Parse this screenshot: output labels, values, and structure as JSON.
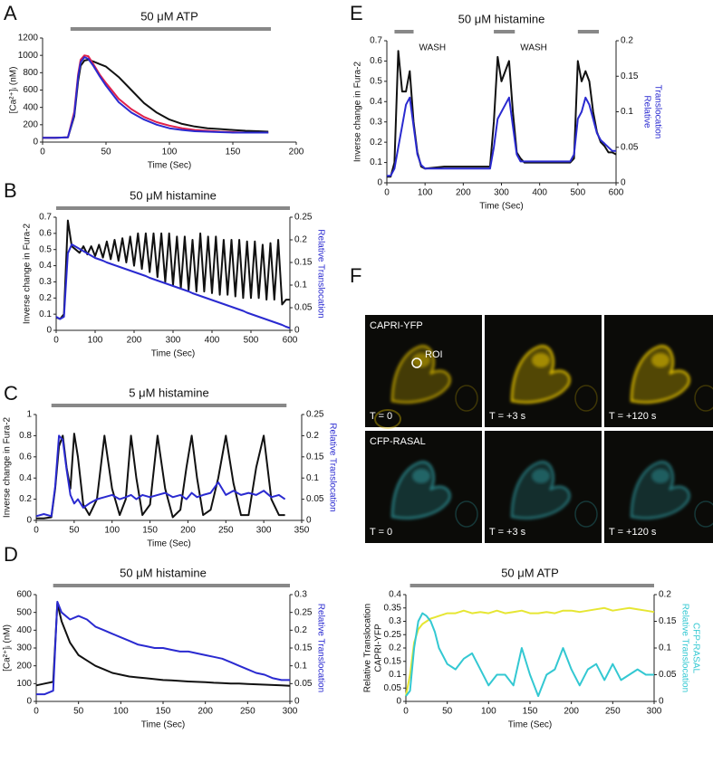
{
  "chart_data": [
    {
      "label": "A",
      "type": "line",
      "title": "50 μM ATP",
      "stimulus": {
        "spans": [
          [
            22,
            180
          ]
        ]
      },
      "xlabel": "Time (Sec)",
      "ylabel": [
        "[Ca²⁺]ᵢ (nM)"
      ],
      "x": [
        0,
        10,
        20,
        25,
        28,
        30,
        33,
        36,
        40,
        45,
        50,
        60,
        70,
        80,
        90,
        100,
        110,
        120,
        130,
        140,
        150,
        160,
        170,
        178
      ],
      "series": [
        {
          "color": "#111111",
          "axis": "y",
          "values": [
            50,
            50,
            55,
            300,
            700,
            880,
            940,
            950,
            930,
            900,
            870,
            750,
            600,
            450,
            340,
            260,
            210,
            180,
            160,
            150,
            140,
            130,
            125,
            120
          ]
        },
        {
          "color": "#e0204a",
          "axis": "y",
          "values": [
            50,
            50,
            55,
            350,
            780,
            950,
            1000,
            990,
            900,
            780,
            680,
            500,
            380,
            290,
            230,
            190,
            160,
            140,
            130,
            120,
            115,
            110,
            110,
            110
          ]
        },
        {
          "color": "#2a2ad0",
          "axis": "y",
          "values": [
            50,
            50,
            55,
            320,
            750,
            920,
            980,
            960,
            880,
            760,
            650,
            460,
            340,
            260,
            200,
            160,
            140,
            125,
            120,
            115,
            110,
            110,
            110,
            110
          ]
        }
      ],
      "xlim": [
        0,
        200
      ],
      "xticks": [
        0,
        50,
        100,
        150,
        200
      ],
      "ylim": [
        0,
        1200
      ],
      "yticks": [
        0,
        200,
        400,
        600,
        800,
        1000,
        1200
      ]
    },
    {
      "label": "B",
      "type": "line",
      "title": "50 μM histamine",
      "stimulus": {
        "spans": [
          [
            0,
            600
          ]
        ]
      },
      "xlabel": "Time (Sec)",
      "ylabel": [
        "Inverse change in Fura-2"
      ],
      "y2label": [
        "Relative Translocation"
      ],
      "x": [
        0,
        10,
        20,
        30,
        40,
        50,
        60,
        70,
        80,
        90,
        100,
        110,
        120,
        130,
        140,
        150,
        160,
        170,
        180,
        190,
        200,
        210,
        220,
        230,
        240,
        250,
        260,
        270,
        280,
        290,
        300,
        310,
        320,
        330,
        340,
        350,
        360,
        370,
        380,
        390,
        400,
        410,
        420,
        430,
        440,
        450,
        460,
        470,
        480,
        490,
        500,
        510,
        520,
        530,
        540,
        550,
        560,
        570,
        580,
        590,
        600
      ],
      "series": [
        {
          "color": "#111111",
          "axis": "y",
          "values": [
            0.08,
            0.07,
            0.1,
            0.68,
            0.52,
            0.5,
            0.48,
            0.52,
            0.47,
            0.52,
            0.46,
            0.53,
            0.45,
            0.55,
            0.44,
            0.56,
            0.43,
            0.57,
            0.42,
            0.58,
            0.4,
            0.6,
            0.38,
            0.6,
            0.36,
            0.6,
            0.33,
            0.6,
            0.3,
            0.6,
            0.28,
            0.58,
            0.26,
            0.58,
            0.25,
            0.56,
            0.24,
            0.6,
            0.24,
            0.58,
            0.23,
            0.58,
            0.22,
            0.56,
            0.22,
            0.56,
            0.21,
            0.56,
            0.2,
            0.55,
            0.2,
            0.55,
            0.2,
            0.53,
            0.19,
            0.54,
            0.19,
            0.56,
            0.16,
            0.19,
            0.19
          ]
        },
        {
          "color": "#2a2ad0",
          "axis": "y2",
          "values": [
            0.03,
            0.025,
            0.03,
            0.17,
            0.19,
            0.185,
            0.18,
            0.175,
            0.17,
            0.165,
            0.16,
            0.157,
            0.154,
            0.15,
            0.147,
            0.144,
            0.141,
            0.138,
            0.135,
            0.132,
            0.129,
            0.126,
            0.123,
            0.12,
            0.116,
            0.113,
            0.11,
            0.107,
            0.104,
            0.101,
            0.098,
            0.095,
            0.092,
            0.089,
            0.086,
            0.082,
            0.079,
            0.076,
            0.073,
            0.07,
            0.067,
            0.064,
            0.061,
            0.058,
            0.055,
            0.052,
            0.049,
            0.046,
            0.043,
            0.039,
            0.036,
            0.033,
            0.03,
            0.027,
            0.024,
            0.021,
            0.018,
            0.015,
            0.012,
            0.008,
            0.005
          ]
        }
      ],
      "xlim": [
        0,
        600
      ],
      "xticks": [
        0,
        100,
        200,
        300,
        400,
        500,
        600
      ],
      "ylim": [
        0,
        0.7
      ],
      "yticks": [
        0,
        0.1,
        0.2,
        0.3,
        0.4,
        0.5,
        0.6,
        0.7
      ],
      "y2lim": [
        0,
        0.25
      ],
      "y2ticks": [
        0,
        0.05,
        0.1,
        0.15,
        0.2,
        0.25
      ]
    },
    {
      "label": "C",
      "type": "line",
      "title": "5 μM histamine",
      "stimulus": {
        "spans": [
          [
            20,
            330
          ]
        ]
      },
      "xlabel": "Time (Sec)",
      "ylabel": [
        "Inverse change in Fura-2"
      ],
      "y2label": [
        "Relative Translocation"
      ],
      "x": [
        0,
        10,
        20,
        25,
        30,
        35,
        40,
        45,
        50,
        55,
        62,
        70,
        80,
        90,
        100,
        110,
        118,
        125,
        132,
        140,
        150,
        160,
        170,
        180,
        190,
        198,
        205,
        212,
        220,
        230,
        240,
        250,
        260,
        270,
        280,
        290,
        300,
        310,
        320,
        328
      ],
      "series": [
        {
          "color": "#111111",
          "axis": "y",
          "values": [
            0.02,
            0.02,
            0.03,
            0.3,
            0.7,
            0.8,
            0.5,
            0.3,
            0.82,
            0.6,
            0.15,
            0.05,
            0.2,
            0.8,
            0.3,
            0.05,
            0.2,
            0.8,
            0.4,
            0.05,
            0.15,
            0.8,
            0.3,
            0.03,
            0.1,
            0.5,
            0.8,
            0.4,
            0.05,
            0.1,
            0.4,
            0.8,
            0.35,
            0.05,
            0.05,
            0.5,
            0.8,
            0.2,
            0.05,
            0.05
          ]
        },
        {
          "color": "#2a2ad0",
          "axis": "y2",
          "values": [
            0.01,
            0.015,
            0.01,
            0.08,
            0.2,
            0.19,
            0.12,
            0.06,
            0.04,
            0.05,
            0.03,
            0.04,
            0.05,
            0.055,
            0.06,
            0.05,
            0.055,
            0.06,
            0.05,
            0.06,
            0.055,
            0.06,
            0.065,
            0.055,
            0.06,
            0.05,
            0.065,
            0.055,
            0.06,
            0.065,
            0.09,
            0.06,
            0.07,
            0.06,
            0.065,
            0.06,
            0.07,
            0.055,
            0.06,
            0.05
          ]
        }
      ],
      "xlim": [
        0,
        350
      ],
      "xticks": [
        0,
        50,
        100,
        150,
        200,
        250,
        300,
        350
      ],
      "ylim": [
        0,
        1
      ],
      "yticks": [
        0,
        0.2,
        0.4,
        0.6,
        0.8,
        1
      ],
      "y2lim": [
        0,
        0.25
      ],
      "y2ticks": [
        0,
        0.05,
        0.1,
        0.15,
        0.2,
        0.25
      ]
    },
    {
      "label": "D",
      "type": "line",
      "title": "50 μM histamine",
      "stimulus": {
        "spans": [
          [
            20,
            300
          ]
        ]
      },
      "xlabel": "Time (Sec)",
      "ylabel": [
        "[Ca²⁺]ᵢ (nM)"
      ],
      "y2label": [
        "Relative Translocation"
      ],
      "x": [
        0,
        10,
        20,
        25,
        30,
        40,
        50,
        60,
        70,
        80,
        90,
        100,
        110,
        120,
        130,
        140,
        150,
        160,
        170,
        180,
        190,
        200,
        210,
        220,
        230,
        240,
        250,
        260,
        270,
        280,
        290,
        300
      ],
      "series": [
        {
          "color": "#111111",
          "axis": "y",
          "values": [
            90,
            100,
            110,
            550,
            450,
            330,
            260,
            230,
            200,
            180,
            160,
            150,
            140,
            135,
            130,
            125,
            120,
            118,
            115,
            112,
            110,
            108,
            105,
            103,
            100,
            100,
            98,
            96,
            94,
            92,
            90,
            88
          ]
        },
        {
          "color": "#2a2ad0",
          "axis": "y2",
          "values": [
            0.02,
            0.02,
            0.03,
            0.28,
            0.25,
            0.23,
            0.24,
            0.23,
            0.21,
            0.2,
            0.19,
            0.18,
            0.17,
            0.16,
            0.155,
            0.15,
            0.15,
            0.145,
            0.14,
            0.14,
            0.135,
            0.13,
            0.125,
            0.12,
            0.11,
            0.1,
            0.09,
            0.08,
            0.075,
            0.065,
            0.06,
            0.06
          ]
        }
      ],
      "xlim": [
        0,
        300
      ],
      "xticks": [
        0,
        50,
        100,
        150,
        200,
        250,
        300
      ],
      "ylim": [
        0,
        600
      ],
      "yticks": [
        0,
        100,
        200,
        300,
        400,
        500,
        600
      ],
      "y2lim": [
        0,
        0.3
      ],
      "y2ticks": [
        0,
        0.05,
        0.1,
        0.15,
        0.2,
        0.25,
        0.3
      ]
    },
    {
      "label": "E",
      "type": "line",
      "title": "50 μM histamine",
      "stimulus": {
        "spans": [
          [
            20,
            70
          ],
          [
            280,
            335
          ],
          [
            500,
            555
          ]
        ]
      },
      "annotations": [
        "WASH",
        "WASH"
      ],
      "xlabel": "Time (Sec)",
      "ylabel": [
        "Inverse change in Fura-2"
      ],
      "y2label": [
        "Relative",
        "Translocation"
      ],
      "x": [
        0,
        10,
        20,
        30,
        40,
        50,
        60,
        70,
        80,
        90,
        100,
        150,
        200,
        250,
        270,
        280,
        290,
        300,
        310,
        320,
        330,
        340,
        350,
        360,
        400,
        450,
        480,
        490,
        500,
        510,
        520,
        530,
        540,
        550,
        560,
        570,
        580,
        590,
        600
      ],
      "series": [
        {
          "color": "#111111",
          "axis": "y",
          "values": [
            0.03,
            0.03,
            0.1,
            0.65,
            0.45,
            0.45,
            0.55,
            0.3,
            0.15,
            0.08,
            0.07,
            0.08,
            0.08,
            0.08,
            0.08,
            0.3,
            0.62,
            0.5,
            0.55,
            0.6,
            0.35,
            0.15,
            0.12,
            0.1,
            0.1,
            0.1,
            0.1,
            0.12,
            0.6,
            0.5,
            0.55,
            0.5,
            0.35,
            0.25,
            0.2,
            0.18,
            0.15,
            0.15,
            0.14
          ]
        },
        {
          "color": "#2a2ad0",
          "axis": "y2",
          "values": [
            0.01,
            0.01,
            0.02,
            0.05,
            0.08,
            0.11,
            0.12,
            0.08,
            0.04,
            0.025,
            0.02,
            0.02,
            0.02,
            0.02,
            0.02,
            0.05,
            0.09,
            0.1,
            0.11,
            0.12,
            0.08,
            0.04,
            0.03,
            0.03,
            0.03,
            0.03,
            0.03,
            0.04,
            0.09,
            0.1,
            0.12,
            0.11,
            0.09,
            0.07,
            0.06,
            0.055,
            0.05,
            0.045,
            0.045
          ]
        }
      ],
      "xlim": [
        0,
        600
      ],
      "xticks": [
        0,
        100,
        200,
        300,
        400,
        500,
        600
      ],
      "ylim": [
        0,
        0.7
      ],
      "yticks": [
        0,
        0.1,
        0.2,
        0.3,
        0.4,
        0.5,
        0.6,
        0.7
      ],
      "y2lim": [
        0,
        0.2
      ],
      "y2ticks": [
        0,
        0.05,
        0.1,
        0.15,
        0.2
      ]
    },
    {
      "type": "line",
      "title": "50 μM ATP",
      "stimulus": {
        "spans": [
          [
            5,
            300
          ]
        ]
      },
      "xlabel": "Time (Sec)",
      "ylabel": [
        "Relative Translocation",
        "CAPRI-YFP"
      ],
      "y2label": [
        "Relative Translocation",
        "CFP-RASAL"
      ],
      "x": [
        0,
        5,
        10,
        15,
        20,
        25,
        30,
        35,
        40,
        50,
        60,
        70,
        80,
        90,
        100,
        110,
        120,
        130,
        140,
        150,
        160,
        170,
        180,
        190,
        200,
        210,
        220,
        230,
        240,
        250,
        260,
        270,
        280,
        290,
        300
      ],
      "series": [
        {
          "color": "#e6e633",
          "axis": "y",
          "values": [
            0.02,
            0.1,
            0.22,
            0.27,
            0.29,
            0.3,
            0.31,
            0.315,
            0.32,
            0.33,
            0.33,
            0.34,
            0.33,
            0.335,
            0.33,
            0.34,
            0.33,
            0.335,
            0.34,
            0.33,
            0.33,
            0.335,
            0.33,
            0.34,
            0.34,
            0.335,
            0.34,
            0.345,
            0.35,
            0.34,
            0.345,
            0.35,
            0.345,
            0.34,
            0.335
          ]
        },
        {
          "color": "#33c8d2",
          "axis": "y2",
          "values": [
            0.01,
            0.02,
            0.1,
            0.15,
            0.165,
            0.16,
            0.15,
            0.13,
            0.1,
            0.07,
            0.06,
            0.08,
            0.09,
            0.06,
            0.03,
            0.05,
            0.05,
            0.03,
            0.1,
            0.05,
            0.01,
            0.05,
            0.06,
            0.1,
            0.06,
            0.03,
            0.06,
            0.07,
            0.04,
            0.07,
            0.04,
            0.05,
            0.06,
            0.05,
            0.05
          ]
        }
      ],
      "xlim": [
        0,
        300
      ],
      "xticks": [
        0,
        50,
        100,
        150,
        200,
        250,
        300
      ],
      "ylim": [
        0,
        0.4
      ],
      "yticks": [
        0,
        0.05,
        0.1,
        0.15,
        0.2,
        0.25,
        0.3,
        0.35,
        0.4
      ],
      "y2lim": [
        0,
        0.2
      ],
      "y2ticks": [
        0,
        0.05,
        0.1,
        0.15,
        0.2
      ]
    }
  ],
  "images": {
    "label": "F",
    "roi": "ROI",
    "rows": [
      {
        "channel": "CAPRI-YFP",
        "times": [
          "T = 0",
          "T = +3 s",
          "T = +120 s"
        ]
      },
      {
        "channel": "CFP-RASAL",
        "times": [
          "T = 0",
          "T = +3 s",
          "T = +120 s"
        ]
      }
    ]
  }
}
